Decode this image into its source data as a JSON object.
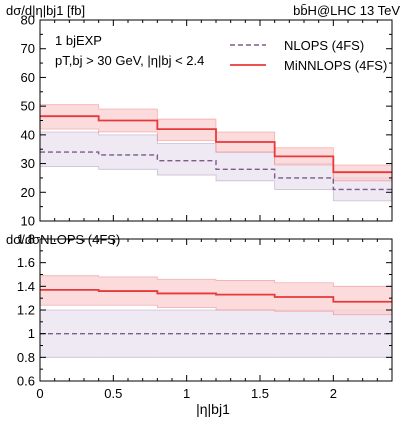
{
  "chart_data": [
    {
      "type": "line",
      "panel": "main",
      "ylabel": "dσ/d|η|bj1 [fb]",
      "title_right": "bb̄H@LHC 13 TeV",
      "cut_line1": "1 bjEXP",
      "cut_line2": "pT,bj > 30 GeV, |η|bj < 2.4",
      "ylim": [
        10,
        80
      ],
      "yticks": [
        "10",
        "20",
        "30",
        "40",
        "50",
        "60",
        "70",
        "80"
      ],
      "xlim": [
        0,
        2.4
      ],
      "bin_edges": [
        0,
        0.4,
        0.8,
        1.2,
        1.6,
        2.0,
        2.4
      ],
      "legend_position": "top-right",
      "series": [
        {
          "name": "NLOPS (4FS)",
          "style": "dashed",
          "color": "#7b5c8c",
          "band_color": "#e9e2ef",
          "values": [
            34,
            33,
            31,
            28,
            25,
            21
          ],
          "band_low": [
            29,
            28,
            26,
            24,
            21,
            17
          ],
          "band_high": [
            41,
            40,
            37,
            34,
            30,
            25
          ]
        },
        {
          "name": "MiNNLOPS (4FS)",
          "style": "solid",
          "color": "#e8393a",
          "band_color": "#f9cfd0",
          "values": [
            46.5,
            45,
            42,
            37.5,
            32.5,
            27
          ],
          "band_low": [
            42,
            41,
            38,
            34,
            29.5,
            24
          ],
          "band_high": [
            50.5,
            49,
            45.5,
            41,
            35.5,
            29.5
          ]
        }
      ]
    },
    {
      "type": "line",
      "panel": "ratio",
      "ylabel": "dσ/dσNLOPS (4FS)",
      "xlabel": "|η|bj1",
      "ylim": [
        0.6,
        1.8
      ],
      "yticks": [
        "0.6",
        "0.8",
        "1",
        "1.2",
        "1.4",
        "1.6",
        "1.8"
      ],
      "xlim": [
        0,
        2.4
      ],
      "xticks": [
        "0",
        "0.5",
        "1",
        "1.5",
        "2"
      ],
      "bin_edges": [
        0,
        0.4,
        0.8,
        1.2,
        1.6,
        2.0,
        2.4
      ],
      "series": [
        {
          "name": "NLOPS (4FS)",
          "style": "dashed",
          "color": "#7b5c8c",
          "band_color": "#e9e2ef",
          "values": [
            1,
            1,
            1,
            1,
            1,
            1
          ],
          "band_low": [
            0.8,
            0.8,
            0.8,
            0.8,
            0.8,
            0.8
          ],
          "band_high": [
            1.2,
            1.2,
            1.2,
            1.2,
            1.2,
            1.2
          ]
        },
        {
          "name": "MiNNLOPS (4FS)",
          "style": "solid",
          "color": "#e8393a",
          "band_color": "#f9cfd0",
          "values": [
            1.37,
            1.36,
            1.34,
            1.33,
            1.31,
            1.27
          ],
          "band_low": [
            1.24,
            1.24,
            1.22,
            1.2,
            1.19,
            1.16
          ],
          "band_high": [
            1.49,
            1.48,
            1.46,
            1.45,
            1.43,
            1.4
          ]
        }
      ]
    }
  ]
}
